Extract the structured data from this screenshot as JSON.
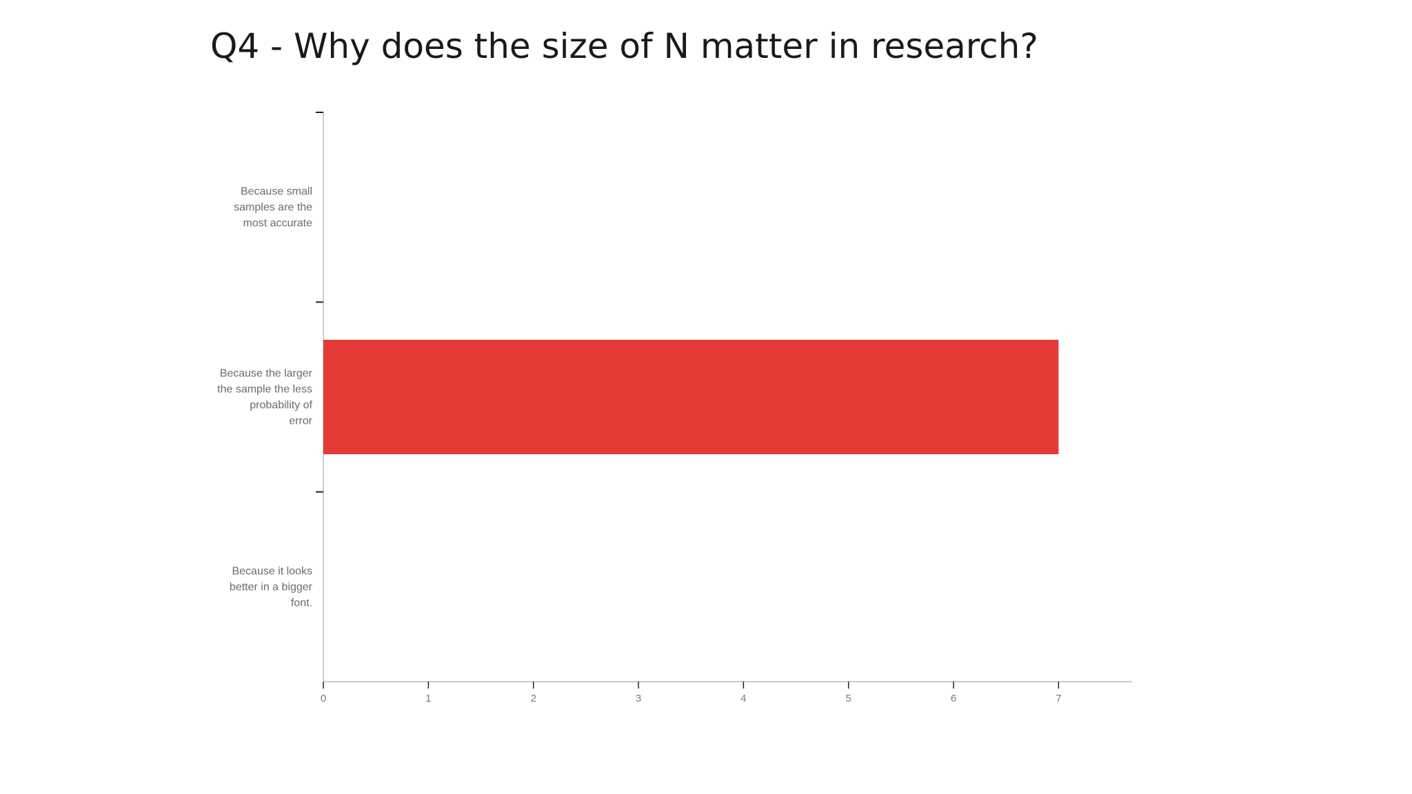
{
  "slide": {
    "title": "Q4 - Why does the size of N matter in research?"
  },
  "chart_data": {
    "type": "bar",
    "orientation": "horizontal",
    "categories": [
      [
        "Because small",
        "samples are the",
        "most accurate"
      ],
      [
        "Because the larger",
        "the sample the less",
        "probability of",
        "error"
      ],
      [
        "Because it looks",
        "better in a bigger",
        "font."
      ]
    ],
    "values": [
      0,
      7,
      0
    ],
    "x_ticks": [
      "0",
      "1",
      "2",
      "3",
      "4",
      "5",
      "6",
      "7"
    ],
    "xlim": [
      0,
      7.7
    ],
    "grid": false,
    "bar_color": "#e53935",
    "axis_color": "#cccccc",
    "tick_mark_color": "#222222"
  }
}
